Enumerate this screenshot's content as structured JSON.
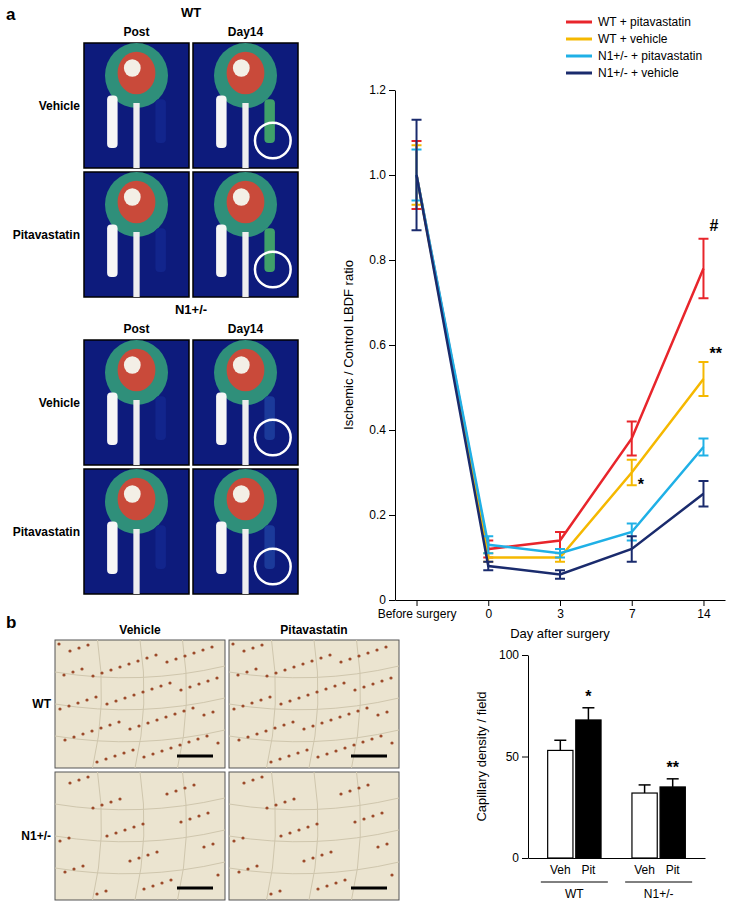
{
  "panels": {
    "a": {
      "label": "a",
      "groups": [
        {
          "title": "WT",
          "columns": [
            "Post",
            "Day14"
          ],
          "rows": [
            "Vehicle",
            "Pitavastatin"
          ]
        },
        {
          "title": "N1+/-",
          "columns": [
            "Post",
            "Day14"
          ],
          "rows": [
            "Vehicle",
            "Pitavastatin"
          ]
        }
      ]
    },
    "b": {
      "label": "b",
      "columns": [
        "Vehicle",
        "Pitavastatin"
      ],
      "rows": [
        "WT",
        "N1+/-"
      ]
    }
  },
  "chart_data": [
    {
      "type": "line",
      "x_label": "Day after surgery",
      "y_label": "Ischemic / Control LBDF ratio",
      "categories": [
        "Before surgery",
        "0",
        "3",
        "7",
        "14"
      ],
      "series": [
        {
          "name": "WT + pitavastatin",
          "color": "#e8252b",
          "values": [
            1.0,
            0.12,
            0.14,
            0.38,
            0.78
          ],
          "errors": [
            0.08,
            0.02,
            0.02,
            0.04,
            0.07
          ]
        },
        {
          "name": "WT + vehicle",
          "color": "#f5b800",
          "values": [
            1.0,
            0.1,
            0.1,
            0.3,
            0.52
          ],
          "errors": [
            0.07,
            0.01,
            0.01,
            0.03,
            0.04
          ]
        },
        {
          "name": "N1+/- + pitavastatin",
          "color": "#1fb0e6",
          "values": [
            1.0,
            0.13,
            0.11,
            0.16,
            0.36
          ],
          "errors": [
            0.06,
            0.02,
            0.01,
            0.02,
            0.02
          ]
        },
        {
          "name": "N1+/- + vehicle",
          "color": "#1a2b6d",
          "values": [
            1.0,
            0.08,
            0.06,
            0.12,
            0.25
          ],
          "errors": [
            0.13,
            0.01,
            0.01,
            0.03,
            0.03
          ]
        }
      ],
      "ylim": [
        0,
        1.2
      ],
      "yticks": [
        0,
        0.2,
        0.4,
        0.6,
        0.8,
        {
          "value": 1,
          "label": "1.0"
        },
        1.2
      ],
      "legend": "upper right",
      "annotations": [
        {
          "text": "#",
          "x": "14",
          "y": 0.88
        },
        {
          "text": "**",
          "x": "14",
          "y": 0.58
        },
        {
          "text": "*",
          "x": "7",
          "y": 0.27
        }
      ]
    },
    {
      "type": "bar",
      "y_label": "Capillary density / field",
      "categories": [
        "WT",
        "N1+/-"
      ],
      "series": [
        {
          "name": "Veh",
          "color": "#ffffff",
          "values": [
            53,
            32
          ],
          "errors": [
            5,
            4
          ]
        },
        {
          "name": "Pit",
          "color": "#000000",
          "values": [
            68,
            35
          ],
          "errors": [
            6,
            4
          ]
        }
      ],
      "ylim": [
        0,
        100
      ],
      "yticks": [
        0,
        50,
        100
      ],
      "annotations": [
        {
          "text": "*",
          "x": "WT",
          "series": "Pit",
          "y": 77
        },
        {
          "text": "**",
          "x": "N1+/-",
          "series": "Pit",
          "y": 42
        }
      ]
    }
  ]
}
